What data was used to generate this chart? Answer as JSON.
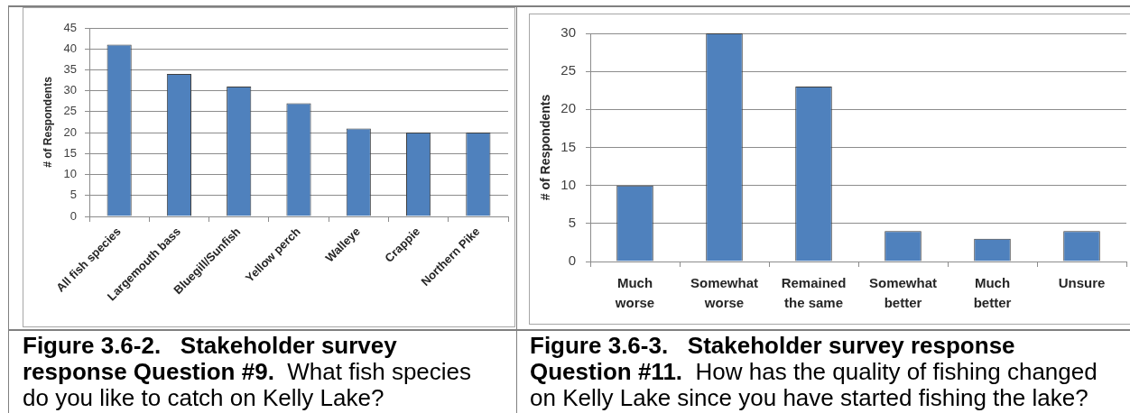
{
  "chart_data": [
    {
      "type": "bar",
      "title": "Figure 3.6-2.   Stakeholder survey response Question #9.  What fish species do you like to catch on Kelly Lake?",
      "ylabel": "# of Respondents",
      "categories": [
        "All fish species",
        "Largemouth bass",
        "Bluegill/Sunfish",
        "Yellow perch",
        "Walleye",
        "Crappie",
        "Northern Pike"
      ],
      "values": [
        41,
        34,
        31,
        27,
        21,
        20,
        20
      ],
      "color": "#4f81bd",
      "ylim": [
        0,
        45
      ],
      "yticks": [
        0,
        5,
        10,
        15,
        20,
        25,
        30,
        35,
        40,
        45
      ],
      "grid": "y"
    },
    {
      "type": "bar",
      "title": "Figure 3.6-3.   Stakeholder survey response Question #11.  How has the quality of fishing changed on Kelly Lake since you have started fishing the lake?",
      "ylabel": "# of Respondents",
      "categories": [
        "Much worse",
        "Somewhat worse",
        "Remained the same",
        "Somewhat better",
        "Much better",
        "Unsure"
      ],
      "values": [
        10,
        30,
        23,
        4,
        3,
        4
      ],
      "color": "#4f81bd",
      "ylim": [
        0,
        30
      ],
      "yticks": [
        0,
        5,
        10,
        15,
        20,
        25,
        30
      ],
      "grid": "y"
    }
  ]
}
